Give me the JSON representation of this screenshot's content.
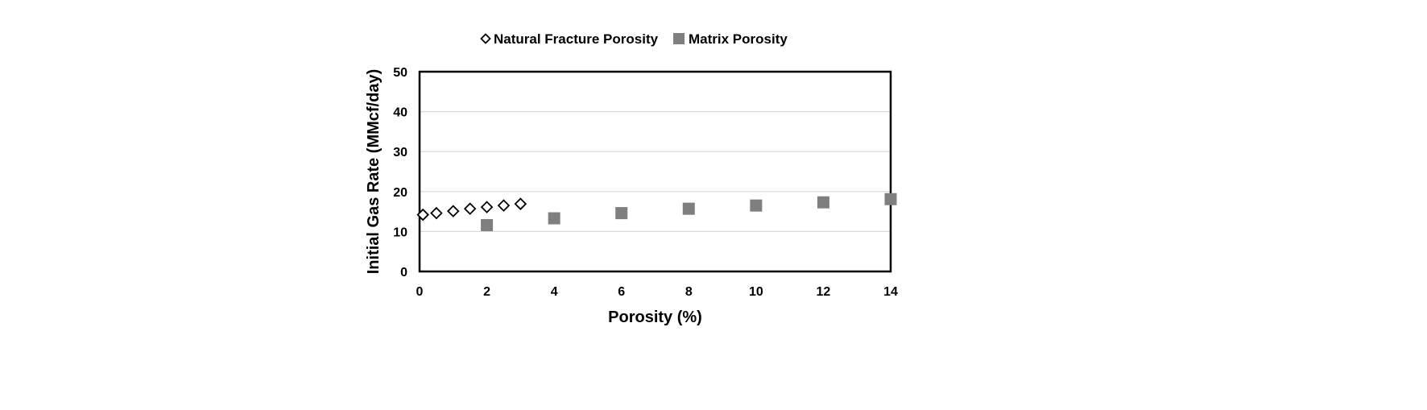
{
  "chart_data": {
    "type": "scatter",
    "title": "",
    "xlabel": "Porosity (%)",
    "ylabel": "Initial Gas Rate (MMcf/day)",
    "xlim": [
      0,
      14
    ],
    "ylim": [
      0,
      50
    ],
    "xticks": [
      0,
      2,
      4,
      6,
      8,
      10,
      12,
      14
    ],
    "yticks": [
      0,
      10,
      20,
      30,
      40,
      50
    ],
    "grid": "horizontal",
    "legend_position": "top",
    "series": [
      {
        "name": "Natural Fracture Porosity",
        "marker": "diamond-open",
        "color": "#000000",
        "x": [
          0.1,
          0.5,
          1.0,
          1.5,
          2.0,
          2.5,
          3.0
        ],
        "y": [
          14.2,
          14.6,
          15.1,
          15.7,
          16.1,
          16.5,
          16.9
        ]
      },
      {
        "name": "Matrix Porosity",
        "marker": "square-filled",
        "color": "#7f7f7f",
        "x": [
          2,
          4,
          6,
          8,
          10,
          12,
          14
        ],
        "y": [
          11.6,
          13.3,
          14.6,
          15.7,
          16.5,
          17.3,
          18.1
        ]
      }
    ]
  }
}
